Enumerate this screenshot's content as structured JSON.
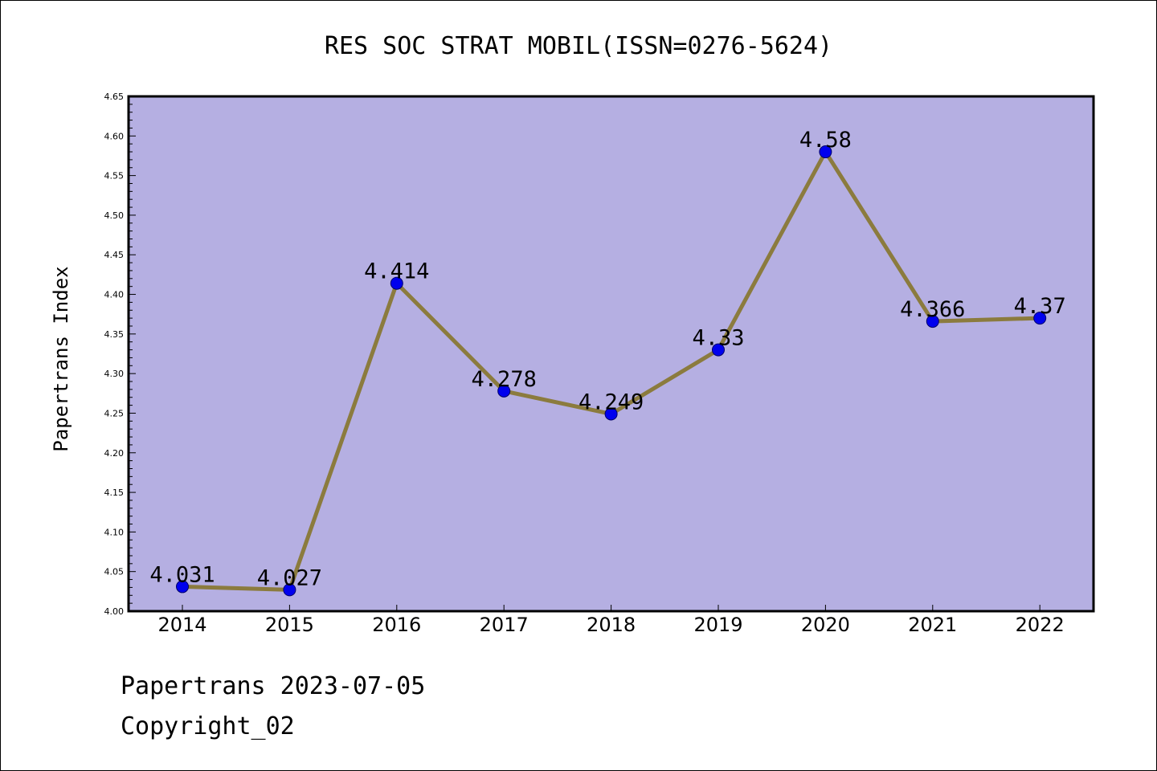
{
  "chart_data": {
    "type": "line",
    "title": "RES SOC STRAT MOBIL(ISSN=0276-5624)",
    "ylabel": "Papertrans Index",
    "xlabel": "",
    "categories": [
      "2014",
      "2015",
      "2016",
      "2017",
      "2018",
      "2019",
      "2020",
      "2021",
      "2022"
    ],
    "values": [
      4.031,
      4.027,
      4.414,
      4.278,
      4.249,
      4.33,
      4.58,
      4.366,
      4.37
    ],
    "data_labels": [
      "4.031",
      "4.027",
      "4.414",
      "4.278",
      "4.249",
      "4.33",
      "4.58",
      "4.366",
      "4.37"
    ],
    "ylim": [
      4.0,
      4.65
    ],
    "yticks": [
      "4.00",
      "4.05",
      "4.10",
      "4.15",
      "4.20",
      "4.25",
      "4.30",
      "4.35",
      "4.40",
      "4.45",
      "4.50",
      "4.55",
      "4.60",
      "4.65"
    ],
    "grid": false,
    "legend": "none",
    "colors": {
      "plot_background": "#b5afe2",
      "line": "#8b7b3e",
      "marker": "#0000ee",
      "marker_edge": "#00006a",
      "axis": "#000000"
    }
  },
  "footer": {
    "line1": "Papertrans 2023-07-05",
    "line2": "Copyright_02"
  }
}
